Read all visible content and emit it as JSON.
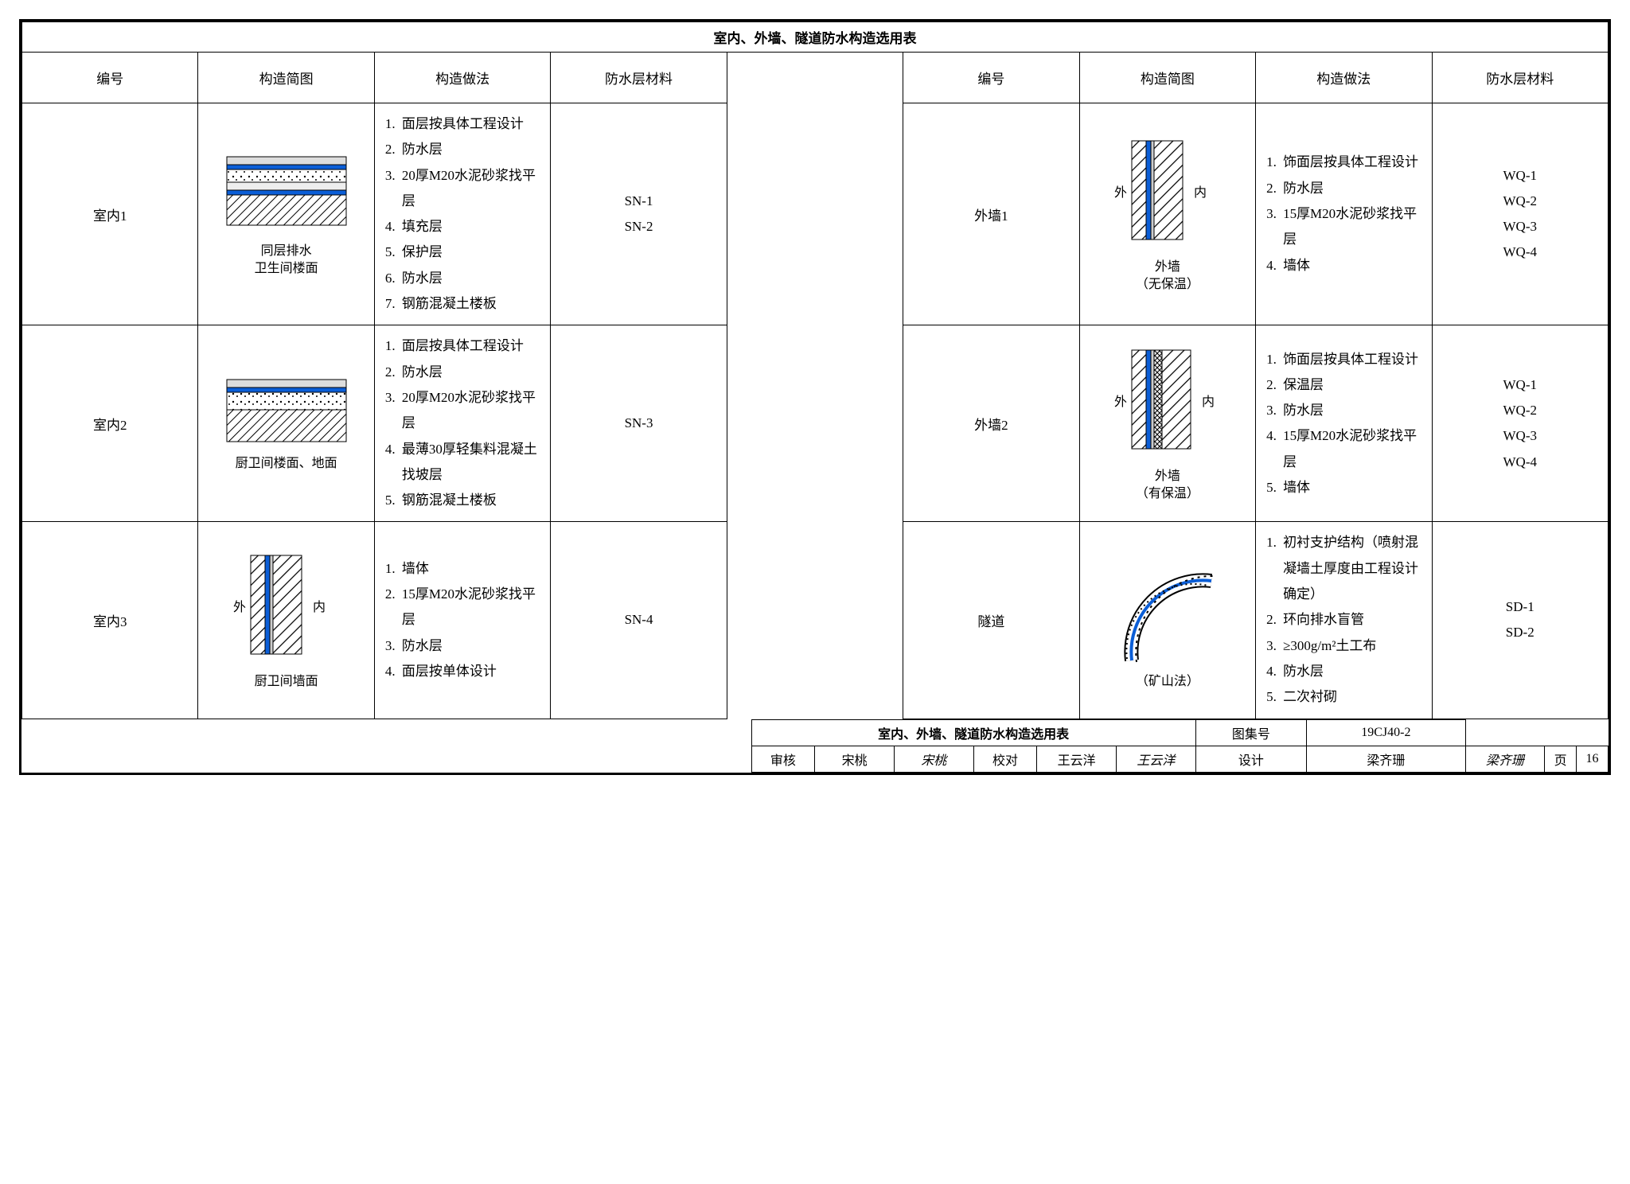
{
  "title": "室内、外墙、隧道防水构造选用表",
  "headers": {
    "id": "编号",
    "diagram": "构造简图",
    "method": "构造做法",
    "material": "防水层材料"
  },
  "left_rows": [
    {
      "id": "室内1",
      "caption": "同层排水\n卫生间楼面",
      "steps": [
        "面层按具体工程设计",
        "防水层",
        "20厚M20水泥砂浆找平层",
        "填充层",
        "保护层",
        "防水层",
        "钢筋混凝土楼板"
      ],
      "materials": [
        "SN-1",
        "SN-2"
      ],
      "diagram_type": "floor-layers"
    },
    {
      "id": "室内2",
      "caption": "厨卫间楼面、地面",
      "steps": [
        "面层按具体工程设计",
        "防水层",
        "20厚M20水泥砂浆找平层",
        "最薄30厚轻集料混凝土找坡层",
        "钢筋混凝土楼板"
      ],
      "materials": [
        "SN-3"
      ],
      "diagram_type": "floor-layers-simple"
    },
    {
      "id": "室内3",
      "caption": "厨卫间墙面",
      "steps": [
        "墙体",
        "15厚M20水泥砂浆找平层",
        "防水层",
        "面层按单体设计"
      ],
      "materials": [
        "SN-4"
      ],
      "diagram_type": "wall-vertical",
      "side_out": "外",
      "side_in": "内"
    }
  ],
  "right_rows": [
    {
      "id": "外墙1",
      "caption": "外墙\n（无保温）",
      "steps": [
        "饰面层按具体工程设计",
        "防水层",
        "15厚M20水泥砂浆找平层",
        "墙体"
      ],
      "materials": [
        "WQ-1",
        "WQ-2",
        "WQ-3",
        "WQ-4"
      ],
      "diagram_type": "wall-vertical",
      "side_out": "外",
      "side_in": "内"
    },
    {
      "id": "外墙2",
      "caption": "外墙\n（有保温）",
      "steps": [
        "饰面层按具体工程设计",
        "保温层",
        "防水层",
        "15厚M20水泥砂浆找平层",
        "墙体"
      ],
      "materials": [
        "WQ-1",
        "WQ-2",
        "WQ-3",
        "WQ-4"
      ],
      "diagram_type": "wall-vertical-insulated",
      "side_out": "外",
      "side_in": "内"
    },
    {
      "id": "隧道",
      "caption": "（矿山法）",
      "steps": [
        "初衬支护结构（喷射混凝墙土厚度由工程设计确定）",
        "环向排水盲管",
        "≥300g/m²土工布",
        "防水层",
        "二次衬砌"
      ],
      "materials": [
        "SD-1",
        "SD-2"
      ],
      "diagram_type": "tunnel-arc"
    }
  ],
  "footer": {
    "title": "室内、外墙、隧道防水构造选用表",
    "atlas_no_label": "图集号",
    "atlas_no": "19CJ40-2",
    "page_label": "页",
    "page": "16",
    "审核_label": "审核",
    "审核_name": "宋桃",
    "审核_sig": "宋桃",
    "校对_label": "校对",
    "校对_name": "王云洋",
    "校对_sig": "王云洋",
    "设计_label": "设计",
    "设计_name": "梁齐珊",
    "设计_sig": "梁齐珊"
  },
  "colors": {
    "membrane": "#0b5ed7",
    "hatch": "#000000",
    "dotfill": "#000000",
    "bg": "#ffffff"
  }
}
